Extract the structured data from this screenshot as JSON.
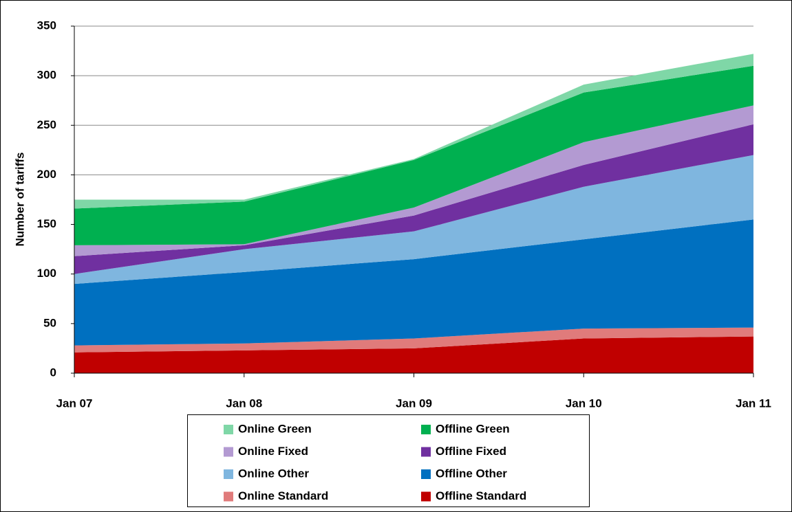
{
  "chart_data": {
    "type": "stacked_area",
    "y_label": "Number of tariffs",
    "categories": [
      "Jan 07",
      "Jan 08",
      "Jan 09",
      "Jan 10",
      "Jan 11"
    ],
    "series": [
      {
        "name": "Offline Standard",
        "color": "#c00000",
        "values": [
          21,
          23,
          25,
          35,
          37
        ]
      },
      {
        "name": "Online Standard",
        "color": "#e07b7b",
        "values": [
          7,
          7,
          10,
          10,
          9
        ]
      },
      {
        "name": "Offline Other",
        "color": "#0070c0",
        "values": [
          62,
          72,
          80,
          90,
          109
        ]
      },
      {
        "name": "Online Other",
        "color": "#7fb6df",
        "values": [
          10,
          23,
          28,
          53,
          65
        ]
      },
      {
        "name": "Offline Fixed",
        "color": "#7030a0",
        "values": [
          18,
          4,
          16,
          22,
          31
        ]
      },
      {
        "name": "Online Fixed",
        "color": "#b39ad2",
        "values": [
          11,
          1,
          8,
          23,
          19
        ]
      },
      {
        "name": "Offline Green",
        "color": "#00b050",
        "values": [
          37,
          43,
          48,
          50,
          40
        ]
      },
      {
        "name": "Online Green",
        "color": "#7fd7a7",
        "values": [
          9,
          2,
          1,
          8,
          12
        ]
      }
    ],
    "ylim": [
      0,
      350
    ],
    "yticks": [
      0,
      50,
      100,
      150,
      200,
      250,
      300,
      350
    ],
    "grid": true
  }
}
